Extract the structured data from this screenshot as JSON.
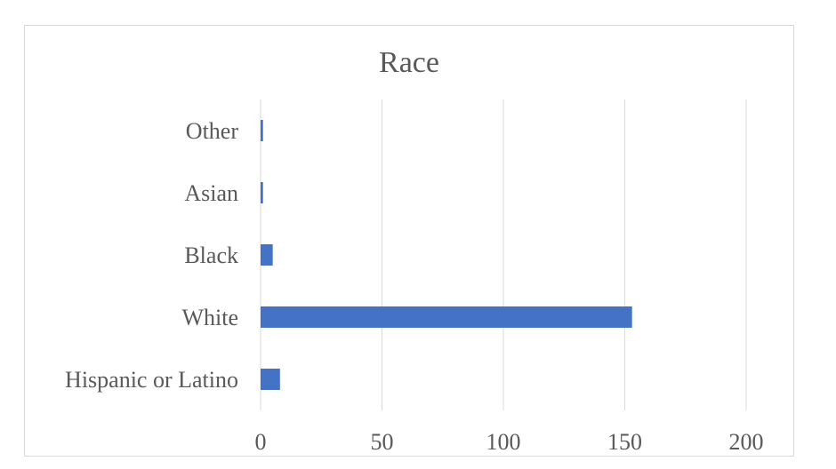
{
  "chart_data": {
    "type": "bar",
    "orientation": "horizontal",
    "title": "Race",
    "xlabel": "",
    "ylabel": "",
    "categories": [
      "Hispanic or Latino",
      "White",
      "Black",
      "Asian",
      "Other"
    ],
    "values": [
      8,
      153,
      5,
      1,
      1
    ],
    "xlim": [
      0,
      200
    ],
    "xticks": [
      0,
      50,
      100,
      150,
      200
    ],
    "grid": "vertical",
    "legend": "none",
    "colors": {
      "bar": "#4472c4",
      "grid": "#d9d9d9",
      "text": "#595959"
    }
  }
}
